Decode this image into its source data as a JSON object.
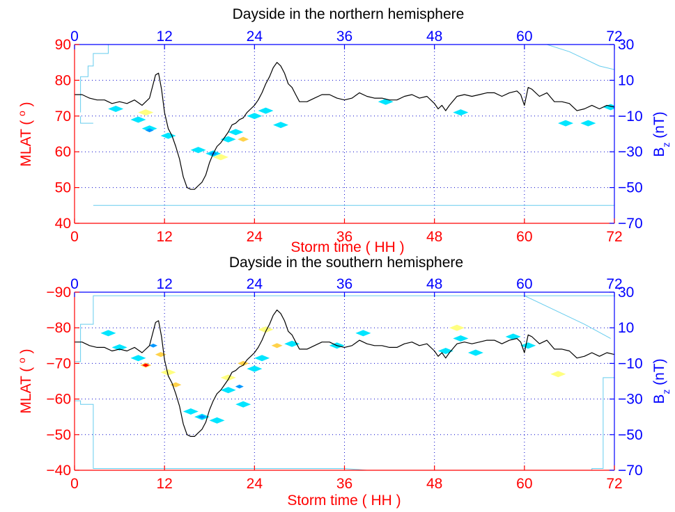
{
  "colors": {
    "left_axis": "#ff0000",
    "right_axis": "#0000ff",
    "top_axis": "#0000ff",
    "grid": "#0000cc",
    "bz_line": "#000000",
    "boundary": "#66ccee",
    "contour_colors": [
      "#00e5ff",
      "#0096ff",
      "#ffff80",
      "#ffd24a",
      "#ff0000"
    ]
  },
  "chart_data": [
    {
      "type": "heatmap",
      "title": "Dayside in the northern hemisphere",
      "xlabel": "Storm time ( HH )",
      "ylabel": "MLAT ( ",
      "ylabel_sup": "o",
      "ylabel_end": " )",
      "ylabel_right": "B",
      "ylabel_right_sub": "z",
      "ylabel_right_end": " (nT)",
      "xlim": [
        0,
        72
      ],
      "ylim": [
        40,
        90
      ],
      "y2lim": [
        -70,
        30
      ],
      "xticks": [
        "0",
        "12",
        "24",
        "36",
        "48",
        "60",
        "72"
      ],
      "xticks_top": [
        "0",
        "12",
        "24",
        "36",
        "48",
        "60",
        "72"
      ],
      "yticks": [
        "40",
        "50",
        "60",
        "70",
        "80",
        "90"
      ],
      "y2ticks": [
        "−70",
        "−50",
        "−30",
        "−10",
        "10",
        "30"
      ],
      "grid": true,
      "contours": [
        {
          "t": 5.5,
          "lat": 72,
          "level": 0
        },
        {
          "t": 8.5,
          "lat": 69,
          "level": 0
        },
        {
          "t": 10,
          "lat": 66.5,
          "level": 0
        },
        {
          "t": 10,
          "lat": 66,
          "level": 1
        },
        {
          "t": 9.5,
          "lat": 71,
          "level": 2
        },
        {
          "t": 12.5,
          "lat": 64.5,
          "level": 0
        },
        {
          "t": 16.5,
          "lat": 60.5,
          "level": 0
        },
        {
          "t": 18.5,
          "lat": 59.5,
          "level": 0
        },
        {
          "t": 18.5,
          "lat": 59.5,
          "level": 1
        },
        {
          "t": 20.5,
          "lat": 63.5,
          "level": 0
        },
        {
          "t": 21.5,
          "lat": 65.5,
          "level": 0
        },
        {
          "t": 22.5,
          "lat": 63.5,
          "level": 3
        },
        {
          "t": 24,
          "lat": 70,
          "level": 0
        },
        {
          "t": 25.5,
          "lat": 71.5,
          "level": 0
        },
        {
          "t": 27.5,
          "lat": 67.5,
          "level": 0
        },
        {
          "t": 19.5,
          "lat": 58.5,
          "level": 2
        },
        {
          "t": 41.5,
          "lat": 74,
          "level": 0
        },
        {
          "t": 51.5,
          "lat": 71,
          "level": 0
        },
        {
          "t": 65.5,
          "lat": 68,
          "level": 0
        },
        {
          "t": 68.5,
          "lat": 68,
          "level": 0
        },
        {
          "t": 71.5,
          "lat": 72.5,
          "level": 0
        }
      ],
      "bz_series": {
        "t": [
          0,
          1,
          2,
          3,
          4,
          5,
          6,
          7,
          8,
          9,
          10,
          10.8,
          11.2,
          11.6,
          12,
          12.5,
          13,
          13.5,
          14,
          14.5,
          15,
          15.5,
          16,
          16.5,
          17,
          17.5,
          18,
          18.5,
          19,
          19.5,
          20,
          20.5,
          21,
          21.5,
          22,
          22.5,
          23,
          23.5,
          24,
          24.5,
          25,
          25.5,
          26,
          26.5,
          27,
          27.5,
          28,
          28.5,
          29,
          29.5,
          30,
          31,
          32,
          33,
          34,
          35,
          36,
          37,
          38,
          39,
          40,
          41,
          42,
          43,
          44,
          45,
          46,
          47,
          48,
          48.5,
          49,
          49.5,
          50,
          51,
          52,
          53,
          54,
          55,
          56,
          57,
          58,
          59,
          59.5,
          60,
          60.5,
          61,
          62,
          63,
          64,
          65,
          66,
          67,
          68,
          69,
          70,
          71,
          72
        ],
        "bz": [
          2,
          2,
          0,
          -1,
          -1,
          -3,
          -2,
          -3,
          -1,
          -4,
          0,
          13,
          14,
          5,
          -8,
          -17,
          -21,
          -27,
          -34,
          -44,
          -50,
          -51,
          -51,
          -49,
          -47,
          -43,
          -36,
          -31,
          -27,
          -25,
          -22,
          -19,
          -15,
          -14,
          -12,
          -11,
          -8,
          -6,
          -4,
          -1,
          3,
          8,
          12,
          17,
          20,
          18,
          14,
          8,
          6,
          2,
          -2,
          -2,
          0,
          2,
          2,
          0,
          -1,
          0,
          3,
          1,
          0,
          0,
          -1,
          -1,
          1,
          2,
          0,
          1,
          -3,
          -6,
          -4,
          -7,
          -4,
          1,
          2,
          1,
          2,
          3,
          3,
          1,
          3,
          4,
          2,
          -4,
          6,
          5,
          1,
          3,
          -2,
          -2,
          -3,
          -7,
          -6,
          -4,
          -6,
          -4,
          -5,
          -3,
          0
        ]
      },
      "boundary": [
        {
          "t": [
            0.8,
            0.8,
            1.8,
            1.8,
            2.5,
            2.5,
            4.5,
            4.5
          ],
          "lat": [
            71,
            81,
            81,
            84,
            84,
            87.5,
            87.5,
            90
          ]
        },
        {
          "t": [
            0.8,
            0.8,
            2.5
          ],
          "lat": [
            70,
            68,
            68
          ]
        },
        {
          "t": [
            2.5,
            72
          ],
          "lat": [
            45,
            45
          ]
        },
        {
          "t": [
            63,
            66,
            68,
            70,
            72
          ],
          "lat": [
            90,
            88,
            86,
            84,
            83
          ]
        }
      ]
    },
    {
      "type": "heatmap",
      "title": "Dayside in the southern hemisphere",
      "xlabel": "Storm time ( HH )",
      "ylabel": "MLAT ( ",
      "ylabel_sup": "o",
      "ylabel_end": " )",
      "ylabel_right": "B",
      "ylabel_right_sub": "z",
      "ylabel_right_end": " (nT)",
      "xlim": [
        0,
        72
      ],
      "ylim": [
        -40,
        -90
      ],
      "y2lim": [
        -70,
        30
      ],
      "xticks": [
        "0",
        "12",
        "24",
        "36",
        "48",
        "60",
        "72"
      ],
      "xticks_top": [
        "0",
        "12",
        "24",
        "36",
        "48",
        "60",
        "72"
      ],
      "yticks": [
        "−40",
        "−50",
        "−60",
        "−70",
        "−80",
        "−90"
      ],
      "y2ticks": [
        "−70",
        "−50",
        "−30",
        "−10",
        "10",
        "30"
      ],
      "grid": true,
      "contours": [
        {
          "t": 4.5,
          "lat": -78.5,
          "level": 0
        },
        {
          "t": 6,
          "lat": -74.5,
          "level": 0
        },
        {
          "t": 8.5,
          "lat": -71.5,
          "level": 0
        },
        {
          "t": 9.5,
          "lat": -69.5,
          "level": 3
        },
        {
          "t": 9.5,
          "lat": -69.5,
          "level": 4
        },
        {
          "t": 11.5,
          "lat": -72.5,
          "level": 3
        },
        {
          "t": 10.5,
          "lat": -75,
          "level": 1
        },
        {
          "t": 12.5,
          "lat": -67.5,
          "level": 2
        },
        {
          "t": 13.5,
          "lat": -64,
          "level": 3
        },
        {
          "t": 15.5,
          "lat": -56.5,
          "level": 0
        },
        {
          "t": 17,
          "lat": -55,
          "level": 0
        },
        {
          "t": 17,
          "lat": -55,
          "level": 1
        },
        {
          "t": 19,
          "lat": -54,
          "level": 0
        },
        {
          "t": 20.5,
          "lat": -62.5,
          "level": 0
        },
        {
          "t": 22,
          "lat": -63.5,
          "level": 1
        },
        {
          "t": 22.5,
          "lat": -58.5,
          "level": 0
        },
        {
          "t": 20.5,
          "lat": -66,
          "level": 2
        },
        {
          "t": 22.5,
          "lat": -70,
          "level": 3
        },
        {
          "t": 24,
          "lat": -68.5,
          "level": 0
        },
        {
          "t": 25,
          "lat": -71.5,
          "level": 0
        },
        {
          "t": 27,
          "lat": -75,
          "level": 3
        },
        {
          "t": 29,
          "lat": -75.5,
          "level": 0
        },
        {
          "t": 25.5,
          "lat": -79.5,
          "level": 2
        },
        {
          "t": 38.5,
          "lat": -78.5,
          "level": 0
        },
        {
          "t": 35,
          "lat": -75,
          "level": 0
        },
        {
          "t": 49.5,
          "lat": -73.5,
          "level": 0
        },
        {
          "t": 51.5,
          "lat": -77,
          "level": 0
        },
        {
          "t": 53.5,
          "lat": -73,
          "level": 0
        },
        {
          "t": 51,
          "lat": -80,
          "level": 2
        },
        {
          "t": 58.5,
          "lat": -77.5,
          "level": 0
        },
        {
          "t": 60.5,
          "lat": -75,
          "level": 0
        },
        {
          "t": 64.5,
          "lat": -67,
          "level": 2
        }
      ],
      "bz_series": {
        "t": [
          0,
          1,
          2,
          3,
          4,
          5,
          6,
          7,
          8,
          9,
          10,
          10.8,
          11.2,
          11.6,
          12,
          12.5,
          13,
          13.5,
          14,
          14.5,
          15,
          15.5,
          16,
          16.5,
          17,
          17.5,
          18,
          18.5,
          19,
          19.5,
          20,
          20.5,
          21,
          21.5,
          22,
          22.5,
          23,
          23.5,
          24,
          24.5,
          25,
          25.5,
          26,
          26.5,
          27,
          27.5,
          28,
          28.5,
          29,
          29.5,
          30,
          31,
          32,
          33,
          34,
          35,
          36,
          37,
          38,
          39,
          40,
          41,
          42,
          43,
          44,
          45,
          46,
          47,
          48,
          48.5,
          49,
          49.5,
          50,
          51,
          52,
          53,
          54,
          55,
          56,
          57,
          58,
          59,
          59.5,
          60,
          60.5,
          61,
          62,
          63,
          64,
          65,
          66,
          67,
          68,
          69,
          70,
          71,
          72
        ],
        "bz": [
          2,
          2,
          0,
          -1,
          -1,
          -3,
          -2,
          -3,
          -1,
          -4,
          0,
          13,
          14,
          5,
          -8,
          -17,
          -21,
          -27,
          -34,
          -44,
          -50,
          -51,
          -51,
          -49,
          -47,
          -43,
          -36,
          -31,
          -27,
          -25,
          -22,
          -19,
          -15,
          -14,
          -12,
          -11,
          -8,
          -6,
          -4,
          -1,
          3,
          8,
          12,
          17,
          20,
          18,
          14,
          8,
          6,
          2,
          -2,
          -2,
          0,
          2,
          2,
          0,
          -1,
          0,
          3,
          1,
          0,
          0,
          -1,
          -1,
          1,
          2,
          0,
          1,
          -3,
          -6,
          -4,
          -7,
          -4,
          1,
          2,
          1,
          2,
          3,
          3,
          1,
          3,
          4,
          2,
          -4,
          6,
          5,
          1,
          3,
          -2,
          -2,
          -3,
          -7,
          -6,
          -4,
          -6,
          -4,
          -5,
          -3,
          0
        ]
      },
      "boundary": [
        {
          "t": [
            0,
            0.8,
            0.8,
            2.5,
            2.5,
            72
          ],
          "lat": [
            -70.5,
            -70.5,
            -81,
            -81,
            -89,
            -89
          ]
        },
        {
          "t": [
            0,
            0.8,
            0.8,
            2.5,
            2.5,
            36,
            39,
            69,
            69,
            70.5,
            70.5,
            72
          ],
          "lat": [
            -59.5,
            -59.5,
            -58.5,
            -58.5,
            -40.5,
            -40.5,
            -40,
            -40,
            -40.5,
            -40.5,
            -66,
            -66
          ]
        },
        {
          "t": [
            60,
            64,
            68,
            71.5
          ],
          "lat": [
            -89,
            -85,
            -81,
            -77
          ]
        }
      ]
    }
  ]
}
